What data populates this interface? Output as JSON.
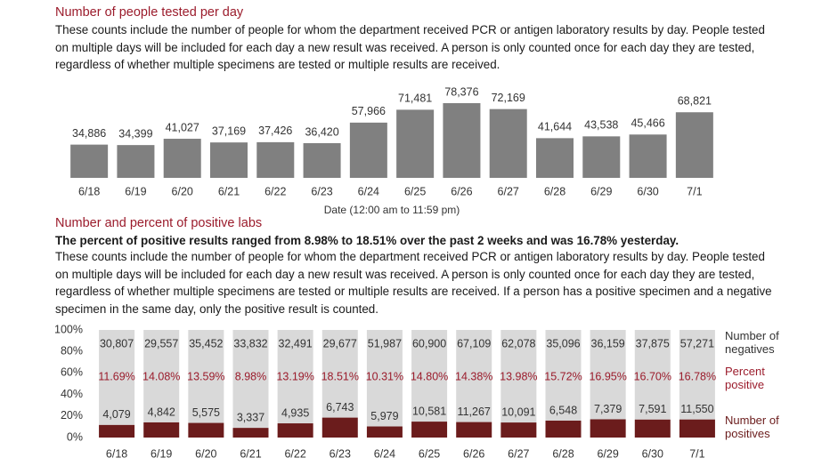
{
  "section1": {
    "title": "Number of people tested per day",
    "paragraph": "These counts include the number of people for whom the department received PCR or antigen laboratory results by day. People tested on multiple days will be included for each day a new result was received. A person is only counted once for each day they are tested, regardless of whether multiple specimens are tested or multiple results are received."
  },
  "section2": {
    "title": "Number and percent of positive labs",
    "summary": "The percent of positive results ranged from 8.98% to 18.51% over the past 2 weeks and was 16.78% yesterday.",
    "paragraph": "These counts include the number of people for whom the department received PCR or antigen laboratory results by day. People tested on multiple days will be included for each day a new result was received. A person is only counted once for each day they are tested, regardless of whether multiple specimens are tested or multiple results are received. If a person has a positive specimen and a negative specimen in the same day, only the positive result is counted."
  },
  "chart_data": [
    {
      "type": "bar",
      "x_label": "Date (12:00 am to 11:59 pm)",
      "color": "#808080",
      "categories": [
        "6/18",
        "6/19",
        "6/20",
        "6/21",
        "6/22",
        "6/23",
        "6/24",
        "6/25",
        "6/26",
        "6/27",
        "6/28",
        "6/29",
        "6/30",
        "7/1"
      ],
      "values": [
        34886,
        34399,
        41027,
        37169,
        37426,
        36420,
        57966,
        71481,
        78376,
        72169,
        41644,
        43538,
        45466,
        68821
      ],
      "value_labels": [
        "34,886",
        "34,399",
        "41,027",
        "37,169",
        "37,426",
        "36,420",
        "57,966",
        "71,481",
        "78,376",
        "72,169",
        "41,644",
        "43,538",
        "45,466",
        "68,821"
      ]
    },
    {
      "type": "stacked_percent",
      "categories": [
        "6/18",
        "6/19",
        "6/20",
        "6/21",
        "6/22",
        "6/23",
        "6/24",
        "6/25",
        "6/26",
        "6/27",
        "6/28",
        "6/29",
        "6/30",
        "7/1"
      ],
      "ylim": [
        0,
        100
      ],
      "yticks": [
        {
          "value": 0,
          "label": "0%"
        },
        {
          "value": 20,
          "label": "20%"
        },
        {
          "value": 40,
          "label": "40%"
        },
        {
          "value": 60,
          "label": "60%"
        },
        {
          "value": 80,
          "label": "80%"
        },
        {
          "value": 100,
          "label": "100%"
        }
      ],
      "series": [
        {
          "name": "Number of positives",
          "color": "#6b1c1c",
          "values": [
            4079,
            4842,
            5575,
            3337,
            4935,
            6743,
            5979,
            10581,
            11267,
            10091,
            6548,
            7379,
            7591,
            11550
          ],
          "value_labels": [
            "4,079",
            "4,842",
            "5,575",
            "3,337",
            "4,935",
            "6,743",
            "5,979",
            "10,581",
            "11,267",
            "10,091",
            "6,548",
            "7,379",
            "7,591",
            "11,550"
          ]
        },
        {
          "name": "Number of negatives",
          "color": "#d9d9d9",
          "values": [
            30807,
            29557,
            35452,
            33832,
            32491,
            29677,
            51987,
            60900,
            67109,
            62078,
            35096,
            36159,
            37875,
            57271
          ],
          "value_labels": [
            "30,807",
            "29,557",
            "35,452",
            "33,832",
            "32,491",
            "29,677",
            "51,987",
            "60,900",
            "67,109",
            "62,078",
            "35,096",
            "36,159",
            "37,875",
            "57,271"
          ]
        },
        {
          "name": "Percent positive",
          "color": "#9b1c2c",
          "values": [
            11.69,
            14.08,
            13.59,
            8.98,
            13.19,
            18.51,
            10.31,
            14.8,
            14.38,
            13.98,
            15.72,
            16.95,
            16.7,
            16.78
          ],
          "value_labels": [
            "11.69%",
            "14.08%",
            "13.59%",
            "8.98%",
            "13.19%",
            "18.51%",
            "10.31%",
            "14.80%",
            "14.38%",
            "13.98%",
            "15.72%",
            "16.95%",
            "16.70%",
            "16.78%"
          ]
        }
      ]
    }
  ]
}
